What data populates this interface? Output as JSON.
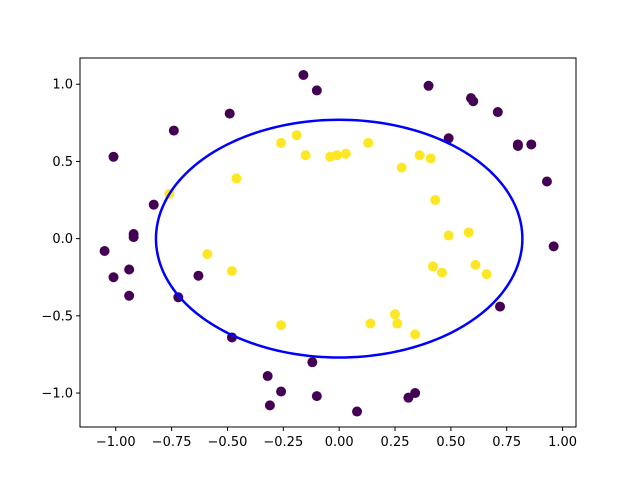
{
  "chart_data": {
    "type": "scatter",
    "title": "",
    "xlabel": "",
    "ylabel": "",
    "xlim": [
      -1.16,
      1.06
    ],
    "ylim": [
      -1.22,
      1.17
    ],
    "grid": false,
    "x_ticks": [
      -1.0,
      -0.75,
      -0.5,
      -0.25,
      0.0,
      0.25,
      0.5,
      0.75,
      1.0
    ],
    "x_tick_labels": [
      "−1.00",
      "−0.75",
      "−0.50",
      "−0.25",
      "0.00",
      "0.25",
      "0.50",
      "0.75",
      "1.00"
    ],
    "y_ticks": [
      -1.0,
      -0.5,
      0.0,
      0.5,
      1.0
    ],
    "y_tick_labels": [
      "−1.0",
      "−0.5",
      "0.0",
      "0.5",
      "1.0"
    ],
    "colors": {
      "class0": "#440154",
      "class1": "#fde725",
      "boundary": "#0000ff"
    },
    "series": [
      {
        "class": 0,
        "points": [
          [
            -1.05,
            -0.08
          ],
          [
            -1.01,
            0.53
          ],
          [
            -1.01,
            -0.25
          ],
          [
            -0.94,
            -0.2
          ],
          [
            -0.94,
            -0.37
          ],
          [
            -0.92,
            0.03
          ],
          [
            -0.92,
            0.01
          ],
          [
            -0.83,
            0.22
          ],
          [
            -0.74,
            0.7
          ],
          [
            -0.72,
            -0.38
          ],
          [
            -0.63,
            -0.24
          ],
          [
            -0.49,
            0.81
          ],
          [
            -0.48,
            -0.64
          ],
          [
            -0.32,
            -0.89
          ],
          [
            -0.31,
            -1.08
          ],
          [
            -0.26,
            -0.99
          ],
          [
            -0.16,
            1.06
          ],
          [
            -0.12,
            -0.8
          ],
          [
            -0.1,
            0.96
          ],
          [
            -0.1,
            -1.02
          ],
          [
            0.08,
            -1.12
          ],
          [
            0.31,
            -1.03
          ],
          [
            0.34,
            -1.0
          ],
          [
            0.4,
            0.99
          ],
          [
            0.49,
            0.65
          ],
          [
            0.59,
            0.91
          ],
          [
            0.6,
            0.89
          ],
          [
            0.71,
            0.82
          ],
          [
            0.72,
            -0.44
          ],
          [
            0.8,
            0.6
          ],
          [
            0.8,
            0.61
          ],
          [
            0.86,
            0.61
          ],
          [
            0.93,
            0.37
          ],
          [
            0.96,
            -0.05
          ]
        ]
      },
      {
        "class": 1,
        "points": [
          [
            -0.76,
            0.29
          ],
          [
            -0.59,
            -0.1
          ],
          [
            -0.48,
            -0.21
          ],
          [
            -0.46,
            0.39
          ],
          [
            -0.26,
            0.62
          ],
          [
            -0.26,
            -0.56
          ],
          [
            -0.19,
            0.67
          ],
          [
            -0.15,
            0.54
          ],
          [
            -0.04,
            0.53
          ],
          [
            -0.01,
            0.54
          ],
          [
            0.03,
            0.55
          ],
          [
            0.13,
            0.62
          ],
          [
            0.14,
            -0.55
          ],
          [
            0.25,
            -0.49
          ],
          [
            0.26,
            -0.55
          ],
          [
            0.28,
            0.46
          ],
          [
            0.34,
            -0.62
          ],
          [
            0.36,
            0.54
          ],
          [
            0.41,
            0.52
          ],
          [
            0.42,
            -0.18
          ],
          [
            0.43,
            0.25
          ],
          [
            0.46,
            -0.22
          ],
          [
            0.49,
            0.02
          ],
          [
            0.58,
            0.04
          ],
          [
            0.61,
            -0.17
          ],
          [
            0.66,
            -0.23
          ]
        ]
      }
    ],
    "boundary": {
      "shape": "ellipse",
      "cx": 0.0,
      "cy": 0.0,
      "rx": 0.82,
      "ry": 0.77
    }
  }
}
